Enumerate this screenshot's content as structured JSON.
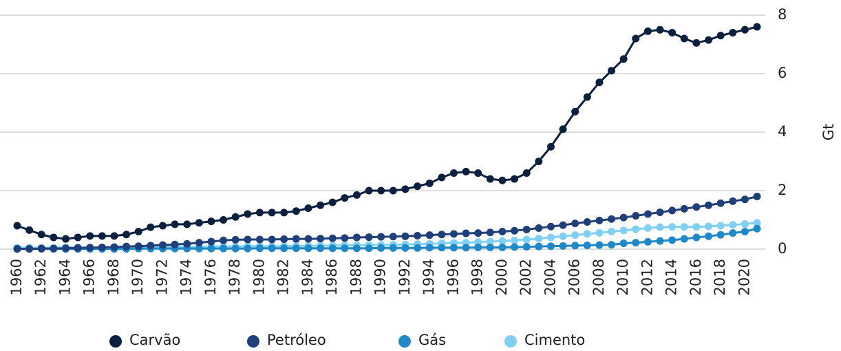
{
  "chart_data": {
    "type": "line",
    "x": [
      1960,
      1961,
      1962,
      1963,
      1964,
      1965,
      1966,
      1967,
      1968,
      1969,
      1970,
      1971,
      1972,
      1973,
      1974,
      1975,
      1976,
      1977,
      1978,
      1979,
      1980,
      1981,
      1982,
      1983,
      1984,
      1985,
      1986,
      1987,
      1988,
      1989,
      1990,
      1991,
      1992,
      1993,
      1994,
      1995,
      1996,
      1997,
      1998,
      1999,
      2000,
      2001,
      2002,
      2003,
      2004,
      2005,
      2006,
      2007,
      2008,
      2009,
      2010,
      2011,
      2012,
      2013,
      2014,
      2015,
      2016,
      2017,
      2018,
      2019,
      2020,
      2021
    ],
    "xlim": [
      1960,
      2021
    ],
    "xticks": [
      1960,
      1962,
      1964,
      1966,
      1968,
      1970,
      1972,
      1974,
      1976,
      1978,
      1980,
      1982,
      1984,
      1986,
      1988,
      1990,
      1992,
      1994,
      1996,
      1998,
      2000,
      2002,
      2004,
      2006,
      2008,
      2010,
      2012,
      2014,
      2016,
      2018,
      2020
    ],
    "ylim": [
      0,
      8
    ],
    "yticks": [
      0,
      2,
      4,
      6,
      8
    ],
    "ylabel": "Gt",
    "grid": true,
    "legend": "bottom",
    "series": [
      {
        "name": "Carvão",
        "color": "#0b1f3f",
        "values": [
          0.8,
          0.65,
          0.5,
          0.4,
          0.35,
          0.4,
          0.45,
          0.45,
          0.45,
          0.5,
          0.6,
          0.75,
          0.8,
          0.85,
          0.85,
          0.9,
          0.95,
          1.0,
          1.1,
          1.2,
          1.25,
          1.25,
          1.25,
          1.3,
          1.4,
          1.5,
          1.6,
          1.75,
          1.85,
          2.0,
          2.0,
          2.0,
          2.05,
          2.15,
          2.25,
          2.45,
          2.6,
          2.65,
          2.6,
          2.4,
          2.35,
          2.4,
          2.6,
          3.0,
          3.5,
          4.1,
          4.7,
          5.2,
          5.7,
          6.1,
          6.5,
          7.2,
          7.45,
          7.5,
          7.4,
          7.2,
          7.05,
          7.15,
          7.3,
          7.4,
          7.5,
          7.6
        ]
      },
      {
        "name": "Petróleo",
        "color": "#1f3f7a",
        "values": [
          0.01,
          0.01,
          0.02,
          0.02,
          0.03,
          0.04,
          0.05,
          0.06,
          0.07,
          0.09,
          0.1,
          0.12,
          0.14,
          0.16,
          0.18,
          0.22,
          0.26,
          0.3,
          0.32,
          0.33,
          0.33,
          0.33,
          0.34,
          0.35,
          0.35,
          0.36,
          0.37,
          0.38,
          0.4,
          0.41,
          0.42,
          0.43,
          0.44,
          0.46,
          0.48,
          0.5,
          0.52,
          0.54,
          0.55,
          0.57,
          0.6,
          0.63,
          0.67,
          0.72,
          0.77,
          0.82,
          0.88,
          0.93,
          0.98,
          1.03,
          1.08,
          1.14,
          1.2,
          1.26,
          1.32,
          1.38,
          1.44,
          1.5,
          1.57,
          1.64,
          1.7,
          1.8
        ]
      },
      {
        "name": "Gás",
        "color": "#1e88c8",
        "values": [
          0.01,
          0.01,
          0.01,
          0.01,
          0.01,
          0.01,
          0.01,
          0.01,
          0.01,
          0.01,
          0.02,
          0.02,
          0.02,
          0.02,
          0.02,
          0.02,
          0.02,
          0.02,
          0.02,
          0.02,
          0.03,
          0.03,
          0.03,
          0.03,
          0.03,
          0.03,
          0.03,
          0.03,
          0.03,
          0.03,
          0.04,
          0.04,
          0.04,
          0.04,
          0.05,
          0.05,
          0.05,
          0.05,
          0.06,
          0.06,
          0.06,
          0.07,
          0.08,
          0.09,
          0.1,
          0.11,
          0.12,
          0.13,
          0.14,
          0.15,
          0.2,
          0.22,
          0.25,
          0.28,
          0.31,
          0.35,
          0.4,
          0.44,
          0.49,
          0.55,
          0.6,
          0.7
        ]
      },
      {
        "name": "Cimento",
        "color": "#7fd0f2",
        "values": [
          0.05,
          0.05,
          0.05,
          0.05,
          0.06,
          0.06,
          0.06,
          0.06,
          0.06,
          0.07,
          0.07,
          0.07,
          0.08,
          0.08,
          0.08,
          0.08,
          0.09,
          0.09,
          0.09,
          0.1,
          0.1,
          0.1,
          0.1,
          0.11,
          0.11,
          0.12,
          0.12,
          0.13,
          0.13,
          0.14,
          0.14,
          0.15,
          0.16,
          0.17,
          0.18,
          0.2,
          0.21,
          0.22,
          0.24,
          0.26,
          0.28,
          0.3,
          0.33,
          0.36,
          0.4,
          0.44,
          0.48,
          0.52,
          0.56,
          0.6,
          0.64,
          0.68,
          0.72,
          0.75,
          0.76,
          0.76,
          0.76,
          0.78,
          0.8,
          0.83,
          0.86,
          0.9
        ]
      }
    ]
  }
}
